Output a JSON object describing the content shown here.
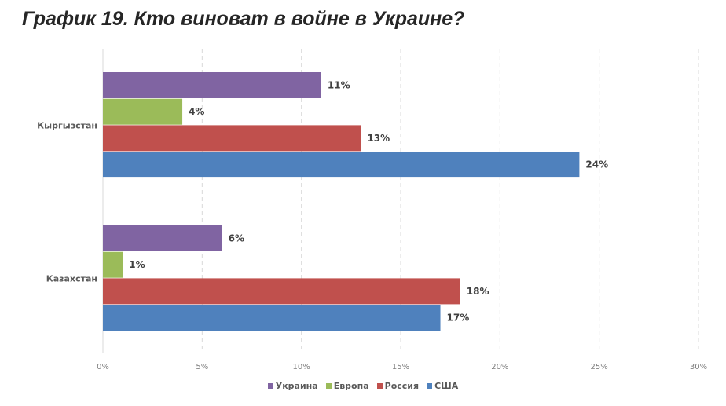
{
  "title": "График 19. Кто виноват в войне в Украине?",
  "chart_data": {
    "type": "bar",
    "orientation": "horizontal",
    "categories": [
      "Кыргызстан",
      "Казахстан"
    ],
    "series": [
      {
        "name": "Украина",
        "color": "#8064a2",
        "values": [
          11,
          6
        ],
        "labels": [
          "11%",
          "6%"
        ]
      },
      {
        "name": "Европа",
        "color": "#9bbb59",
        "values": [
          4,
          1
        ],
        "labels": [
          "4%",
          "1%"
        ]
      },
      {
        "name": "Россия",
        "color": "#c0504d",
        "values": [
          13,
          18
        ],
        "labels": [
          "13%",
          "18%"
        ]
      },
      {
        "name": "США",
        "color": "#4f81bd",
        "values": [
          24,
          17
        ],
        "labels": [
          "24%",
          "17%"
        ]
      }
    ],
    "xlim": [
      0,
      30
    ],
    "xticks": [
      "0%",
      "5%",
      "10%",
      "15%",
      "20%",
      "25%",
      "30%"
    ],
    "grid": "vertical-dashed",
    "legend": "bottom-center"
  }
}
